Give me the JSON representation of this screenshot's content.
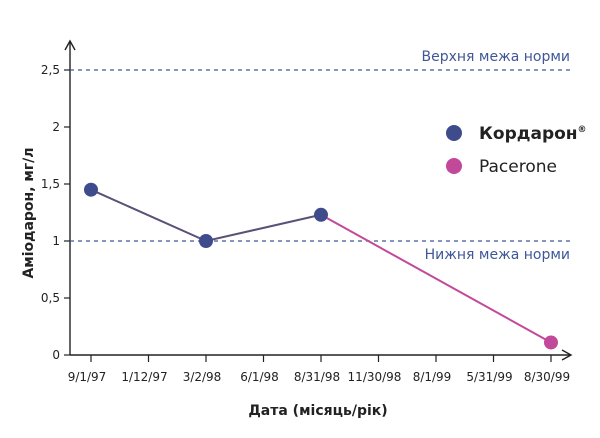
{
  "chart_data": {
    "type": "line",
    "xlabel": "Дата (місяць/рік)",
    "ylabel": "Аміодарон, мг/л",
    "x_ticks": [
      "9/1/97",
      "1/12/97",
      "3/2/98",
      "6/1/98",
      "8/31/98",
      "11/30/98",
      "8/1/99",
      "5/31/99",
      "8/30/99"
    ],
    "y_ticks": [
      "0",
      "0,5",
      "1",
      "1,5",
      "2",
      "2,5"
    ],
    "ylim": [
      0,
      2.5
    ],
    "reference_lines": [
      {
        "label": "Верхня межа норми",
        "value": 2.5
      },
      {
        "label": "Нижня межа норми",
        "value": 1
      }
    ],
    "series": [
      {
        "name": "Кордарон",
        "name_mark": "®",
        "color": "#3f4c8c",
        "points": [
          {
            "x": "9/1/97",
            "y": 1.45
          },
          {
            "x": "3/2/98",
            "y": 1.0
          },
          {
            "x": "8/31/98",
            "y": 1.23
          }
        ]
      },
      {
        "name": "Pacerone",
        "color": "#c2489a",
        "points": [
          {
            "x": "8/31/98",
            "y": 1.23
          },
          {
            "x": "8/30/99",
            "y": 0.11
          }
        ]
      }
    ],
    "line_colors": {
      "segment_1": "#5b5077",
      "segment_2": "#c2489a"
    },
    "legend_position": "right",
    "grid": false
  }
}
